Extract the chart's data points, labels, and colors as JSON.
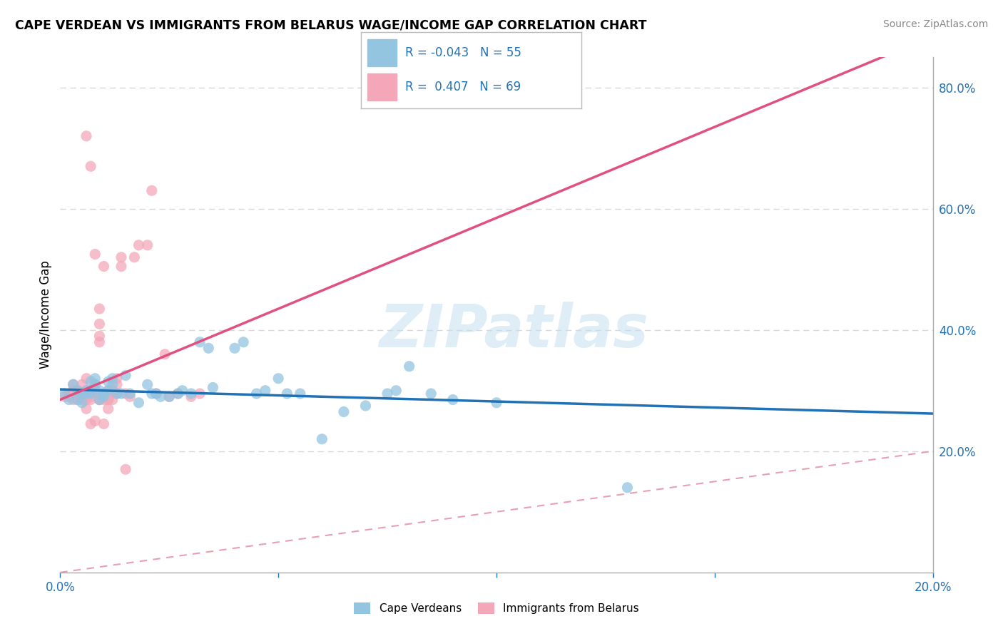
{
  "title": "CAPE VERDEAN VS IMMIGRANTS FROM BELARUS WAGE/INCOME GAP CORRELATION CHART",
  "source": "Source: ZipAtlas.com",
  "ylabel": "Wage/Income Gap",
  "watermark": "ZIPatlas",
  "color_blue": "#93c4e0",
  "color_pink": "#f4a7b9",
  "color_blue_line": "#2171b5",
  "color_pink_line": "#e05080",
  "color_diag": "#f0b0b8",
  "color_grid": "#d8d8d8",
  "blue_scatter": [
    [
      0.001,
      0.295
    ],
    [
      0.002,
      0.285
    ],
    [
      0.003,
      0.31
    ],
    [
      0.004,
      0.3
    ],
    [
      0.004,
      0.285
    ],
    [
      0.005,
      0.295
    ],
    [
      0.005,
      0.28
    ],
    [
      0.006,
      0.3
    ],
    [
      0.006,
      0.295
    ],
    [
      0.007,
      0.3
    ],
    [
      0.007,
      0.315
    ],
    [
      0.007,
      0.295
    ],
    [
      0.008,
      0.31
    ],
    [
      0.008,
      0.32
    ],
    [
      0.009,
      0.3
    ],
    [
      0.009,
      0.285
    ],
    [
      0.01,
      0.29
    ],
    [
      0.01,
      0.295
    ],
    [
      0.011,
      0.3
    ],
    [
      0.011,
      0.315
    ],
    [
      0.012,
      0.31
    ],
    [
      0.012,
      0.32
    ],
    [
      0.013,
      0.295
    ],
    [
      0.014,
      0.295
    ],
    [
      0.015,
      0.325
    ],
    [
      0.016,
      0.295
    ],
    [
      0.018,
      0.28
    ],
    [
      0.02,
      0.31
    ],
    [
      0.021,
      0.295
    ],
    [
      0.022,
      0.295
    ],
    [
      0.023,
      0.29
    ],
    [
      0.025,
      0.29
    ],
    [
      0.027,
      0.295
    ],
    [
      0.028,
      0.3
    ],
    [
      0.03,
      0.295
    ],
    [
      0.032,
      0.38
    ],
    [
      0.034,
      0.37
    ],
    [
      0.035,
      0.305
    ],
    [
      0.04,
      0.37
    ],
    [
      0.042,
      0.38
    ],
    [
      0.045,
      0.295
    ],
    [
      0.047,
      0.3
    ],
    [
      0.05,
      0.32
    ],
    [
      0.052,
      0.295
    ],
    [
      0.055,
      0.295
    ],
    [
      0.06,
      0.22
    ],
    [
      0.065,
      0.265
    ],
    [
      0.07,
      0.275
    ],
    [
      0.075,
      0.295
    ],
    [
      0.077,
      0.3
    ],
    [
      0.08,
      0.34
    ],
    [
      0.085,
      0.295
    ],
    [
      0.09,
      0.285
    ],
    [
      0.1,
      0.28
    ],
    [
      0.13,
      0.14
    ]
  ],
  "pink_scatter": [
    [
      0.001,
      0.29
    ],
    [
      0.002,
      0.29
    ],
    [
      0.002,
      0.295
    ],
    [
      0.003,
      0.3
    ],
    [
      0.003,
      0.31
    ],
    [
      0.003,
      0.285
    ],
    [
      0.004,
      0.3
    ],
    [
      0.004,
      0.285
    ],
    [
      0.004,
      0.295
    ],
    [
      0.005,
      0.31
    ],
    [
      0.005,
      0.295
    ],
    [
      0.005,
      0.285
    ],
    [
      0.006,
      0.3
    ],
    [
      0.006,
      0.32
    ],
    [
      0.006,
      0.295
    ],
    [
      0.006,
      0.285
    ],
    [
      0.006,
      0.27
    ],
    [
      0.007,
      0.245
    ],
    [
      0.007,
      0.29
    ],
    [
      0.007,
      0.295
    ],
    [
      0.007,
      0.285
    ],
    [
      0.008,
      0.3
    ],
    [
      0.008,
      0.31
    ],
    [
      0.008,
      0.25
    ],
    [
      0.008,
      0.3
    ],
    [
      0.009,
      0.39
    ],
    [
      0.009,
      0.41
    ],
    [
      0.009,
      0.435
    ],
    [
      0.009,
      0.295
    ],
    [
      0.009,
      0.285
    ],
    [
      0.01,
      0.295
    ],
    [
      0.01,
      0.285
    ],
    [
      0.01,
      0.245
    ],
    [
      0.011,
      0.27
    ],
    [
      0.011,
      0.285
    ],
    [
      0.011,
      0.3
    ],
    [
      0.011,
      0.295
    ],
    [
      0.012,
      0.3
    ],
    [
      0.012,
      0.295
    ],
    [
      0.012,
      0.285
    ],
    [
      0.012,
      0.3
    ],
    [
      0.013,
      0.31
    ],
    [
      0.013,
      0.32
    ],
    [
      0.013,
      0.295
    ],
    [
      0.014,
      0.505
    ],
    [
      0.014,
      0.52
    ],
    [
      0.015,
      0.295
    ],
    [
      0.015,
      0.17
    ],
    [
      0.016,
      0.29
    ],
    [
      0.017,
      0.52
    ],
    [
      0.018,
      0.54
    ],
    [
      0.02,
      0.54
    ],
    [
      0.021,
      0.63
    ],
    [
      0.022,
      0.295
    ],
    [
      0.024,
      0.36
    ],
    [
      0.025,
      0.29
    ],
    [
      0.027,
      0.295
    ],
    [
      0.03,
      0.29
    ],
    [
      0.032,
      0.295
    ],
    [
      0.006,
      0.72
    ],
    [
      0.007,
      0.67
    ],
    [
      0.009,
      0.285
    ],
    [
      0.011,
      0.285
    ],
    [
      0.008,
      0.525
    ],
    [
      0.01,
      0.505
    ],
    [
      0.009,
      0.38
    ],
    [
      0.007,
      0.295
    ],
    [
      0.01,
      0.295
    ]
  ],
  "xlim": [
    0.0,
    0.2
  ],
  "ylim": [
    0.0,
    0.85
  ],
  "xticks": [
    0.0,
    0.05,
    0.1,
    0.15,
    0.2
  ],
  "yticks_right": [
    0.2,
    0.4,
    0.6,
    0.8
  ],
  "ytick_labels_right": [
    "20.0%",
    "40.0%",
    "60.0%",
    "80.0%"
  ],
  "blue_reg": [
    -0.2,
    0.302
  ],
  "pink_reg": [
    3.0,
    0.285
  ]
}
